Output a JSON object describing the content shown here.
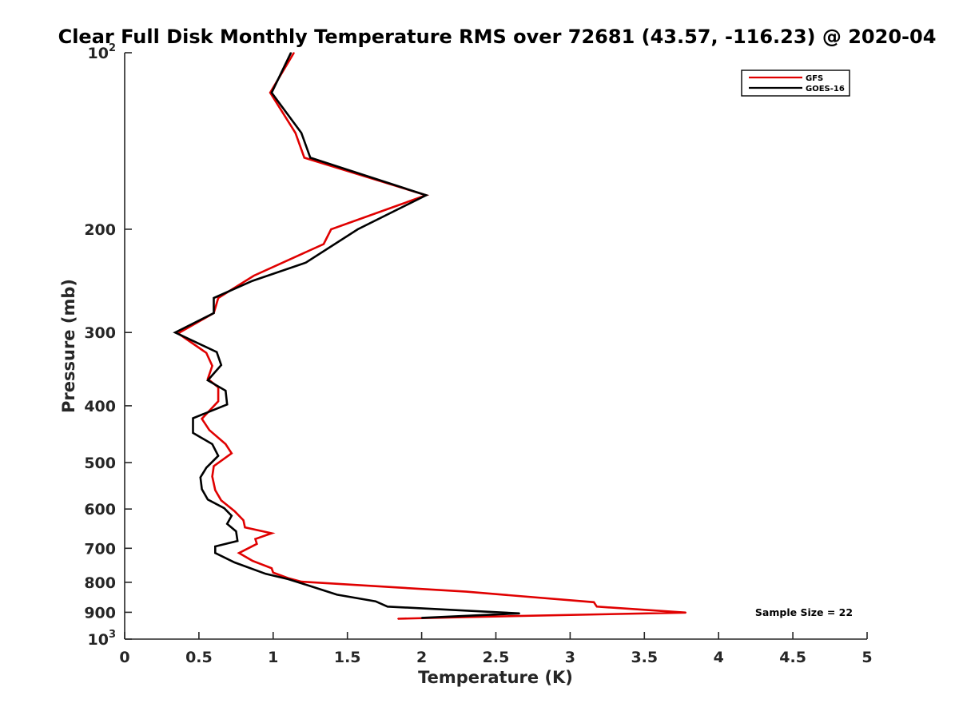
{
  "chart_data": {
    "type": "line",
    "title": "Clear Full Disk Monthly Temperature RMS over 72681 (43.57, -116.23) @ 2020-04",
    "xlabel": "Temperature (K)",
    "ylabel": "Pressure (mb)",
    "xlim": [
      0,
      5
    ],
    "ylim": [
      1000,
      100
    ],
    "y_scale": "log",
    "y_direction": "reversed",
    "grid": false,
    "legend_position": "top-right",
    "x_ticks": [
      "0",
      "0.5",
      "1",
      "1.5",
      "2",
      "2.5",
      "3",
      "3.5",
      "4",
      "4.5",
      "5"
    ],
    "y_ticks": [
      {
        "value": 100,
        "base": "10",
        "exp": "2"
      },
      {
        "value": 200,
        "label": "200"
      },
      {
        "value": 300,
        "label": "300"
      },
      {
        "value": 400,
        "label": "400"
      },
      {
        "value": 500,
        "label": "500"
      },
      {
        "value": 600,
        "label": "600"
      },
      {
        "value": 700,
        "label": "700"
      },
      {
        "value": 800,
        "label": "800"
      },
      {
        "value": 900,
        "label": "900"
      },
      {
        "value": 1000,
        "base": "10",
        "exp": "3"
      }
    ],
    "annotation": "Sample Size = 22",
    "series": [
      {
        "name": "GFS",
        "color": "#e00000",
        "points": [
          [
            1.14,
            100
          ],
          [
            0.98,
            117
          ],
          [
            1.15,
            137
          ],
          [
            1.21,
            151
          ],
          [
            2.03,
            175
          ],
          [
            1.39,
            200
          ],
          [
            1.34,
            212
          ],
          [
            0.87,
            240
          ],
          [
            0.63,
            262
          ],
          [
            0.6,
            278
          ],
          [
            0.36,
            301
          ],
          [
            0.55,
            325
          ],
          [
            0.59,
            342
          ],
          [
            0.56,
            360
          ],
          [
            0.63,
            372
          ],
          [
            0.63,
            393
          ],
          [
            0.52,
            421
          ],
          [
            0.57,
            440
          ],
          [
            0.68,
            465
          ],
          [
            0.72,
            482
          ],
          [
            0.6,
            507
          ],
          [
            0.59,
            528
          ],
          [
            0.61,
            557
          ],
          [
            0.65,
            580
          ],
          [
            0.74,
            605
          ],
          [
            0.8,
            627
          ],
          [
            0.81,
            645
          ],
          [
            0.99,
            660
          ],
          [
            0.88,
            675
          ],
          [
            0.89,
            688
          ],
          [
            0.77,
            713
          ],
          [
            0.86,
            735
          ],
          [
            0.99,
            757
          ],
          [
            1.0,
            770
          ],
          [
            1.1,
            787
          ],
          [
            1.19,
            798
          ],
          [
            2.3,
            830
          ],
          [
            3.16,
            865
          ],
          [
            3.18,
            880
          ],
          [
            3.78,
            901
          ],
          [
            2.3,
            917
          ],
          [
            1.84,
            923
          ]
        ]
      },
      {
        "name": "GOES-16",
        "color": "#000000",
        "points": [
          [
            1.12,
            100
          ],
          [
            0.99,
            117
          ],
          [
            1.19,
            137
          ],
          [
            1.25,
            151
          ],
          [
            2.03,
            175
          ],
          [
            1.57,
            200
          ],
          [
            1.22,
            228
          ],
          [
            0.86,
            245
          ],
          [
            0.6,
            262
          ],
          [
            0.6,
            278
          ],
          [
            0.34,
            300
          ],
          [
            0.62,
            324
          ],
          [
            0.65,
            341
          ],
          [
            0.56,
            362
          ],
          [
            0.68,
            377
          ],
          [
            0.69,
            398
          ],
          [
            0.46,
            420
          ],
          [
            0.46,
            445
          ],
          [
            0.59,
            465
          ],
          [
            0.63,
            487
          ],
          [
            0.55,
            510
          ],
          [
            0.51,
            530
          ],
          [
            0.52,
            555
          ],
          [
            0.56,
            578
          ],
          [
            0.67,
            598
          ],
          [
            0.72,
            616
          ],
          [
            0.69,
            636
          ],
          [
            0.75,
            655
          ],
          [
            0.76,
            680
          ],
          [
            0.61,
            695
          ],
          [
            0.61,
            713
          ],
          [
            0.74,
            740
          ],
          [
            0.95,
            774
          ],
          [
            1.1,
            790
          ],
          [
            1.25,
            812
          ],
          [
            1.43,
            840
          ],
          [
            1.69,
            862
          ],
          [
            1.77,
            880
          ],
          [
            2.66,
            904
          ],
          [
            2.0,
            920
          ]
        ]
      }
    ]
  }
}
